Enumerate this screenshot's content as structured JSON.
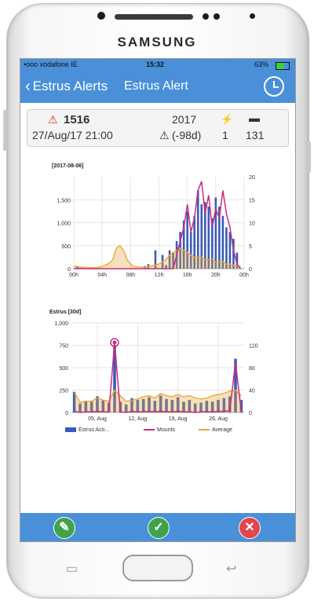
{
  "device": {
    "brand": "SAMSUNG"
  },
  "statusbar": {
    "carrier": "•ooo vodafone IE",
    "time": "15:32",
    "battery": "63%"
  },
  "nav": {
    "back_label": "Estrus Alerts",
    "title": "Estrus Alert"
  },
  "info": {
    "animal_id": "1516",
    "datetime": "27/Aug/17 21:00",
    "year": "2017",
    "days": "(-98d)",
    "lactation_icon": "syringe-icon",
    "lactation": "1",
    "dim_icon": "cow-icon",
    "dim": "131"
  },
  "colors": {
    "bar": "#3b5bb8",
    "mounts": "#cc2b7c",
    "average": "#e9a93a",
    "accent": "#4a90d9"
  },
  "chart_data": [
    {
      "type": "bar",
      "title": "[2017-08-06]",
      "x_tick_labels": [
        "00h",
        "04h",
        "08h",
        "12h",
        "16h",
        "20h",
        "00h"
      ],
      "ylim": [
        0,
        2000
      ],
      "y_ticks": [
        "0",
        "500",
        "1,000",
        "1,500"
      ],
      "ylim_right": [
        0,
        20
      ],
      "y2_ticks": [
        "0",
        "5",
        "10",
        "15",
        "20"
      ],
      "hours": [
        0,
        0.5,
        1,
        1.5,
        2,
        2.5,
        3,
        3.5,
        4,
        4.5,
        5,
        5.5,
        6,
        6.5,
        7,
        7.5,
        8,
        8.5,
        9,
        9.5,
        10,
        10.5,
        11,
        11.5,
        12,
        12.5,
        13,
        13.5,
        14,
        14.5,
        15,
        15.5,
        16,
        16.5,
        17,
        17.5,
        18,
        18.5,
        19,
        19.5,
        20,
        20.5,
        21,
        21.5,
        22,
        22.5,
        23,
        23.5
      ],
      "series": [
        {
          "name": "Estrus Activity",
          "values": [
            0,
            40,
            20,
            0,
            0,
            0,
            0,
            0,
            0,
            0,
            0,
            0,
            0,
            0,
            0,
            0,
            0,
            0,
            0,
            0,
            60,
            100,
            0,
            400,
            0,
            300,
            80,
            400,
            350,
            600,
            800,
            1050,
            1250,
            800,
            1150,
            1700,
            1400,
            1450,
            1350,
            1100,
            1550,
            1350,
            1150,
            900,
            800,
            650,
            350,
            0
          ]
        },
        {
          "name": "Mounts",
          "values": [
            0,
            0,
            0,
            0,
            0,
            0,
            0,
            0,
            0,
            0,
            0,
            0,
            0,
            0,
            0,
            0,
            0,
            0,
            0,
            0,
            0,
            0,
            0,
            0,
            0,
            0,
            0,
            0,
            0,
            3,
            6,
            9,
            14,
            8,
            11,
            17,
            19,
            12,
            16,
            9,
            13,
            11,
            17,
            12,
            9,
            4,
            1,
            0
          ]
        },
        {
          "name": "Average",
          "values": [
            0.5,
            0.5,
            0.3,
            0.3,
            0.2,
            0.2,
            0.2,
            0.3,
            0.5,
            0.8,
            1.2,
            2,
            4.5,
            5,
            4,
            2,
            1,
            0.5,
            0.4,
            0.3,
            0.4,
            0.5,
            0.6,
            0.8,
            1,
            1.5,
            2,
            3,
            3.5,
            4,
            4.5,
            4,
            3.5,
            3,
            2.5,
            2.5,
            2.5,
            2,
            2,
            2,
            1.5,
            1.5,
            1.5,
            1,
            1,
            0.8,
            0.6,
            0.5
          ]
        }
      ]
    },
    {
      "type": "bar",
      "title": "Estrus [30d]",
      "x_tick_labels": [
        "05, Aug",
        "12, Aug",
        "19, Aug",
        "26, Aug"
      ],
      "ylim": [
        0,
        1000
      ],
      "y_ticks": [
        "0",
        "250",
        "500",
        "750",
        "1,000"
      ],
      "ylim_right": [
        0,
        160
      ],
      "y2_ticks": [
        "0",
        "40",
        "80",
        "120"
      ],
      "days": [
        1,
        2,
        3,
        4,
        5,
        6,
        7,
        8,
        9,
        10,
        11,
        12,
        13,
        14,
        15,
        16,
        17,
        18,
        19,
        20,
        21,
        22,
        23,
        24,
        25,
        26,
        27,
        28,
        29,
        30
      ],
      "series": [
        {
          "name": "Estrus Acti...",
          "values": [
            230,
            100,
            130,
            120,
            180,
            140,
            110,
            750,
            120,
            90,
            160,
            140,
            150,
            170,
            130,
            190,
            150,
            140,
            170,
            120,
            140,
            100,
            110,
            130,
            120,
            140,
            160,
            180,
            600,
            140
          ]
        },
        {
          "name": "Mounts",
          "values": [
            2,
            0,
            1,
            1,
            2,
            1,
            1,
            125,
            1,
            0,
            2,
            1,
            1,
            2,
            1,
            2,
            1,
            1,
            2,
            1,
            1,
            0,
            1,
            1,
            1,
            2,
            2,
            3,
            90,
            1
          ]
        },
        {
          "name": "Average",
          "values": [
            36,
            18,
            20,
            20,
            26,
            22,
            20,
            40,
            30,
            20,
            22,
            24,
            28,
            30,
            26,
            34,
            30,
            28,
            32,
            28,
            30,
            26,
            24,
            26,
            30,
            32,
            34,
            38,
            40,
            30
          ]
        }
      ],
      "legend": [
        "Estrus Acti...",
        "Mounts",
        "Average"
      ]
    }
  ],
  "footer": {
    "left_icon": "syringe-icon",
    "center_icon": "check-icon",
    "right_icon": "close-icon"
  }
}
